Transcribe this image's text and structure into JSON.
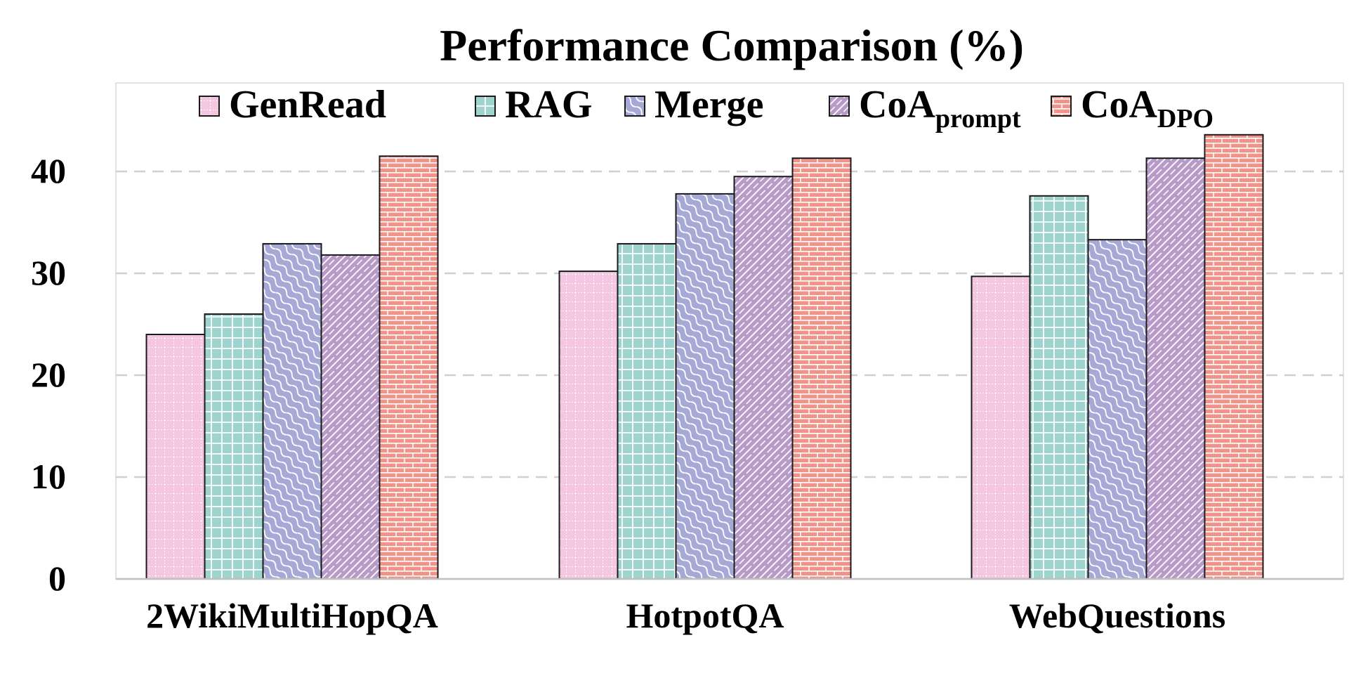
{
  "chart_data": {
    "type": "bar",
    "title": "Performance Comparison (%)",
    "xlabel": "",
    "ylabel": "",
    "categories": [
      "2WikiMultiHopQA",
      "HotpotQA",
      "WebQuestions"
    ],
    "ylim": [
      0,
      45
    ],
    "yticks": [
      0,
      10,
      20,
      30,
      40
    ],
    "grid": true,
    "legend_position": "top",
    "series": [
      {
        "name": "GenRead",
        "name_sub": "",
        "color": "#f4c6e2",
        "pattern": "small-grid",
        "values": [
          24.0,
          30.2,
          29.7
        ]
      },
      {
        "name": "RAG",
        "name_sub": "",
        "color": "#9fd3cd",
        "pattern": "grid",
        "values": [
          26.0,
          32.9,
          37.6
        ]
      },
      {
        "name": "Merge",
        "name_sub": "",
        "color": "#a6a8d6",
        "pattern": "wave",
        "values": [
          32.9,
          37.8,
          33.3
        ]
      },
      {
        "name": "CoA",
        "name_sub": "prompt",
        "color": "#b89ac8",
        "pattern": "diagonal",
        "values": [
          31.8,
          39.5,
          41.3
        ]
      },
      {
        "name": "CoA",
        "name_sub": "DPO",
        "color": "#f2938a",
        "pattern": "brick",
        "values": [
          41.5,
          41.3,
          43.6
        ]
      }
    ]
  }
}
